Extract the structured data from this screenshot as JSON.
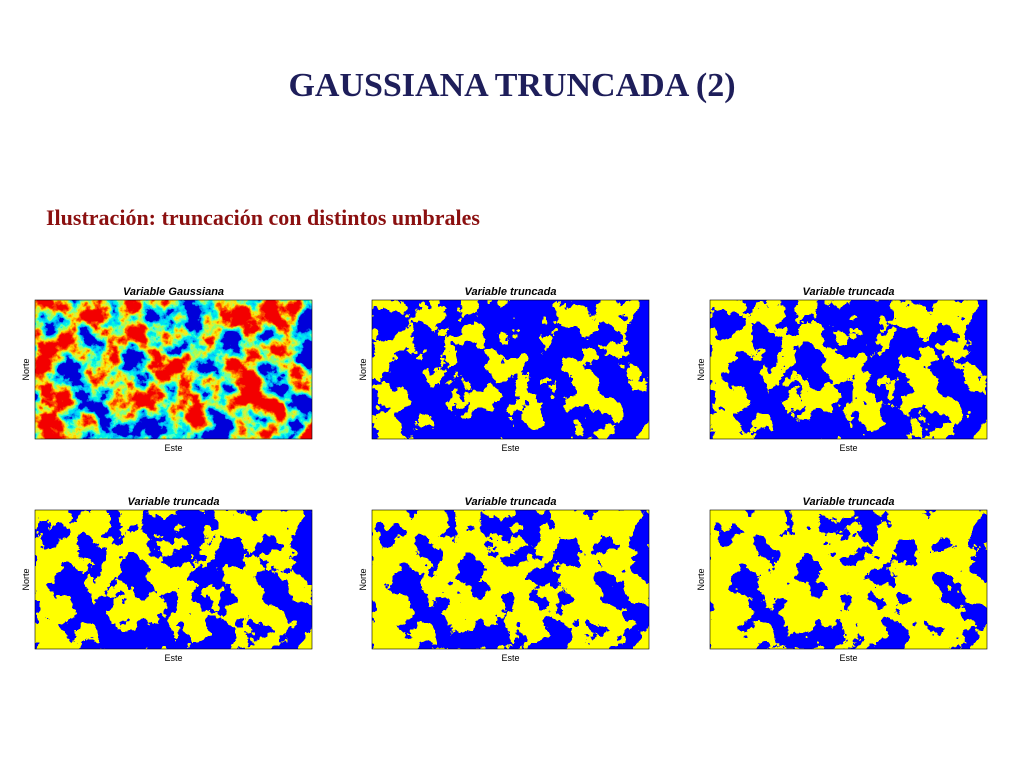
{
  "header": {
    "title": "GAUSSIANA TRUNCADA (2)",
    "subtitle": "Ilustración: truncación con distintos umbrales"
  },
  "panels": [
    {
      "title": "Variable Gaussiana",
      "xlabel": "Este",
      "ylabel": "Norte"
    },
    {
      "title": "Variable truncada",
      "xlabel": "Este",
      "ylabel": "Norte"
    },
    {
      "title": "Variable truncada",
      "xlabel": "Este",
      "ylabel": "Norte"
    },
    {
      "title": "Variable truncada",
      "xlabel": "Este",
      "ylabel": "Norte"
    },
    {
      "title": "Variable truncada",
      "xlabel": "Este",
      "ylabel": "Norte"
    },
    {
      "title": "Variable truncada",
      "xlabel": "Este",
      "ylabel": "Norte"
    }
  ]
}
